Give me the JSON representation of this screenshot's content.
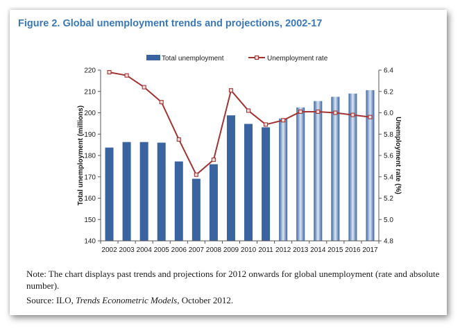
{
  "figure_title": "Figure 2. Global unemployment trends and projections, 2002-17",
  "colors": {
    "bar_past": "#3a64a0",
    "bar_projection_edge": "#3a64a0",
    "bar_projection_center": "#dbe6f4",
    "line": "#a33333",
    "marker_fill": "#f2dcdc",
    "title": "#3a78b8"
  },
  "chart_data": {
    "type": "bar",
    "categories": [
      "2002",
      "2003",
      "2004",
      "2005",
      "2006",
      "2007",
      "2008",
      "2009",
      "2010",
      "2011",
      "2012",
      "2013",
      "2014",
      "2015",
      "2016",
      "2017"
    ],
    "projection_start": "2012",
    "series": [
      {
        "name": "Total unemployment",
        "type": "bar",
        "axis": "left",
        "values": [
          183.7,
          186.3,
          186.3,
          186.0,
          177.2,
          169.1,
          175.9,
          198.8,
          194.8,
          193.2,
          197.3,
          202.5,
          205.5,
          207.5,
          209.0,
          210.6
        ]
      },
      {
        "name": "Unemployment rate",
        "type": "line",
        "axis": "right",
        "values": [
          6.38,
          6.35,
          6.24,
          6.1,
          5.75,
          5.42,
          5.56,
          6.21,
          6.02,
          5.89,
          5.93,
          6.01,
          6.01,
          6.0,
          5.98,
          5.96
        ]
      }
    ],
    "ylabel": "Total unemployment (millions)",
    "ylabel_right": "Unemployment rate (%)",
    "ylim": [
      140,
      220
    ],
    "yticks": [
      140,
      150,
      160,
      170,
      180,
      190,
      200,
      210,
      220
    ],
    "ylim_right": [
      4.8,
      6.4
    ],
    "yticks_right": [
      "4.8",
      "5.0",
      "5.2",
      "5.4",
      "5.6",
      "5.8",
      "6.0",
      "6.2",
      "6.4"
    ],
    "legend_position": "top-center",
    "grid": false
  },
  "note": {
    "text": "Note: The chart displays past trends and projections for 2012 onwards for global unemployment (rate and absolute number).",
    "source_prefix": "Source: ILO, ",
    "source_italic": "Trends Econometric Models",
    "source_suffix": ", October 2012."
  }
}
